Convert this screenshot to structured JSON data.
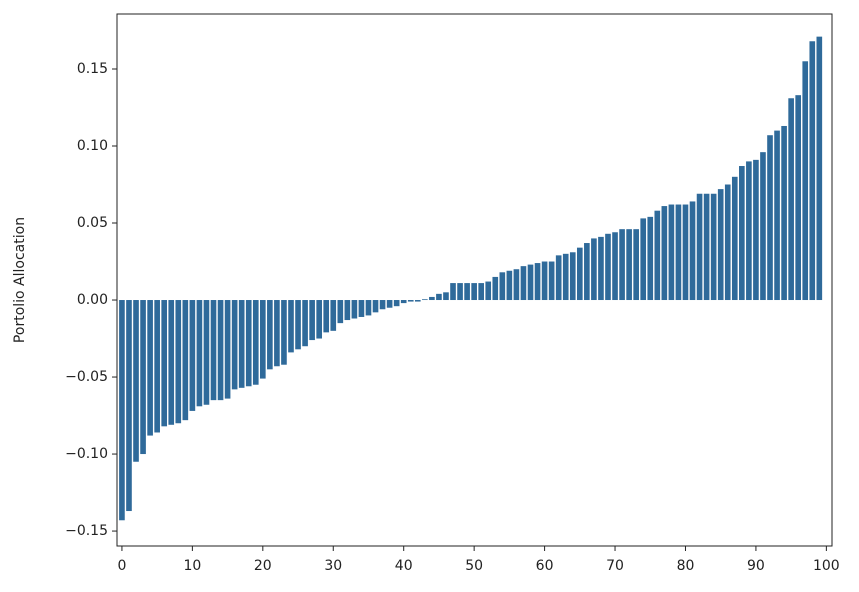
{
  "chart_data": {
    "type": "bar",
    "y_label": "Portolio Allocation",
    "color": "#2f6a9a",
    "x": [
      0,
      1,
      2,
      3,
      4,
      5,
      6,
      7,
      8,
      9,
      10,
      11,
      12,
      13,
      14,
      15,
      16,
      17,
      18,
      19,
      20,
      21,
      22,
      23,
      24,
      25,
      26,
      27,
      28,
      29,
      30,
      31,
      32,
      33,
      34,
      35,
      36,
      37,
      38,
      39,
      40,
      41,
      42,
      43,
      44,
      45,
      46,
      47,
      48,
      49,
      50,
      51,
      52,
      53,
      54,
      55,
      56,
      57,
      58,
      59,
      60,
      61,
      62,
      63,
      64,
      65,
      66,
      67,
      68,
      69,
      70,
      71,
      72,
      73,
      74,
      75,
      76,
      77,
      78,
      79,
      80,
      81,
      82,
      83,
      84,
      85,
      86,
      87,
      88,
      89,
      90,
      91,
      92,
      93,
      94,
      95,
      96,
      97,
      98,
      99
    ],
    "values": [
      -0.143,
      -0.137,
      -0.105,
      -0.1,
      -0.088,
      -0.086,
      -0.082,
      -0.081,
      -0.08,
      -0.078,
      -0.072,
      -0.069,
      -0.068,
      -0.065,
      -0.065,
      -0.064,
      -0.058,
      -0.057,
      -0.056,
      -0.055,
      -0.051,
      -0.045,
      -0.043,
      -0.042,
      -0.034,
      -0.032,
      -0.03,
      -0.026,
      -0.025,
      -0.021,
      -0.02,
      -0.015,
      -0.013,
      -0.012,
      -0.011,
      -0.01,
      -0.008,
      -0.006,
      -0.005,
      -0.004,
      -0.002,
      -0.001,
      -0.001,
      0.0005,
      0.002,
      0.004,
      0.005,
      0.011,
      0.011,
      0.011,
      0.011,
      0.011,
      0.012,
      0.015,
      0.018,
      0.019,
      0.02,
      0.022,
      0.023,
      0.024,
      0.025,
      0.025,
      0.029,
      0.03,
      0.031,
      0.034,
      0.037,
      0.04,
      0.041,
      0.043,
      0.044,
      0.046,
      0.046,
      0.046,
      0.053,
      0.054,
      0.058,
      0.061,
      0.062,
      0.062,
      0.062,
      0.064,
      0.069,
      0.069,
      0.069,
      0.072,
      0.075,
      0.08,
      0.087,
      0.09,
      0.091,
      0.096,
      0.107,
      0.11,
      0.113,
      0.131,
      0.133,
      0.155,
      0.168,
      0.171
    ],
    "xlim": [
      -0.7,
      100.8
    ],
    "xticks": [
      0,
      10,
      20,
      30,
      40,
      50,
      60,
      70,
      80,
      90,
      100
    ],
    "ylim": [
      -0.1597,
      0.1857
    ],
    "yticks": [
      {
        "value": -0.15,
        "label": "−0.15"
      },
      {
        "value": -0.1,
        "label": "−0.10"
      },
      {
        "value": -0.05,
        "label": "−0.05"
      },
      {
        "value": 0,
        "label": "0.00"
      },
      0.05,
      {
        "value": 0.1,
        "label": "0.10"
      },
      0.15
    ]
  }
}
